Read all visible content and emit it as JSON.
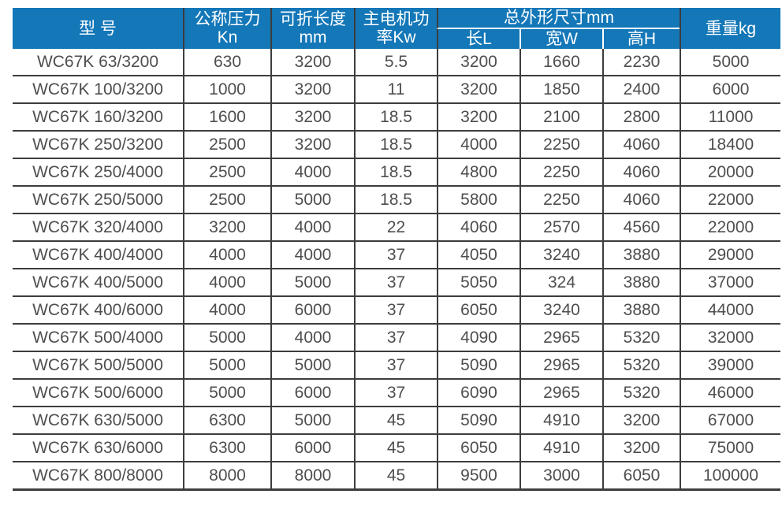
{
  "colors": {
    "header_bg": "#1377b8",
    "header_text": "#ffffff",
    "grid_line": "#3d3d3d",
    "cell_text": "#4e4e50",
    "background": "#ffffff"
  },
  "table": {
    "header": {
      "model": "型 号",
      "pressure_l1": "公称压力",
      "pressure_l2": "Kn",
      "fold_length_l1": "可折长度",
      "fold_length_l2": "mm",
      "motor_power_l1": "主电机功",
      "motor_power_l2": "率Kw",
      "dimensions_group": "总外形尺寸mm",
      "dim_l": "长L",
      "dim_w": "宽W",
      "dim_h": "高H",
      "weight": "重量kg"
    },
    "column_keys": [
      "model",
      "nominal-pressure-kn",
      "fold-length-mm",
      "motor-power-kw",
      "length-l",
      "width-w",
      "height-h",
      "weight-kg"
    ],
    "rows": [
      [
        "WC67K 63/3200",
        "630",
        "3200",
        "5.5",
        "3200",
        "1660",
        "2230",
        "5000"
      ],
      [
        "WC67K 100/3200",
        "1000",
        "3200",
        "11",
        "3200",
        "1850",
        "2400",
        "6000"
      ],
      [
        "WC67K 160/3200",
        "1600",
        "3200",
        "18.5",
        "3200",
        "2100",
        "2800",
        "11000"
      ],
      [
        "WC67K 250/3200",
        "2500",
        "3200",
        "18.5",
        "4000",
        "2250",
        "4060",
        "18400"
      ],
      [
        "WC67K 250/4000",
        "2500",
        "4000",
        "18.5",
        "4800",
        "2250",
        "4060",
        "20000"
      ],
      [
        "WC67K 250/5000",
        "2500",
        "5000",
        "18.5",
        "5800",
        "2250",
        "4060",
        "22000"
      ],
      [
        "WC67K 320/4000",
        "3200",
        "4000",
        "22",
        "4060",
        "2570",
        "4560",
        "22000"
      ],
      [
        "WC67K 400/4000",
        "4000",
        "4000",
        "37",
        "4050",
        "3240",
        "3880",
        "29000"
      ],
      [
        "WC67K 400/5000",
        "4000",
        "5000",
        "37",
        "5050",
        "324",
        "3880",
        "37000"
      ],
      [
        "WC67K 400/6000",
        "4000",
        "6000",
        "37",
        "6050",
        "3240",
        "3880",
        "44000"
      ],
      [
        "WC67K 500/4000",
        "5000",
        "4000",
        "37",
        "4090",
        "2965",
        "5320",
        "32000"
      ],
      [
        "WC67K 500/5000",
        "5000",
        "5000",
        "37",
        "5090",
        "2965",
        "5320",
        "39000"
      ],
      [
        "WC67K 500/6000",
        "5000",
        "6000",
        "37",
        "6090",
        "2965",
        "5320",
        "46000"
      ],
      [
        "WC67K 630/5000",
        "6300",
        "5000",
        "45",
        "5090",
        "4910",
        "3200",
        "67000"
      ],
      [
        "WC67K 630/6000",
        "6300",
        "6000",
        "45",
        "6050",
        "4910",
        "3200",
        "75000"
      ],
      [
        "WC67K 800/8000",
        "8000",
        "8000",
        "45",
        "9500",
        "3000",
        "6050",
        "100000"
      ]
    ]
  }
}
